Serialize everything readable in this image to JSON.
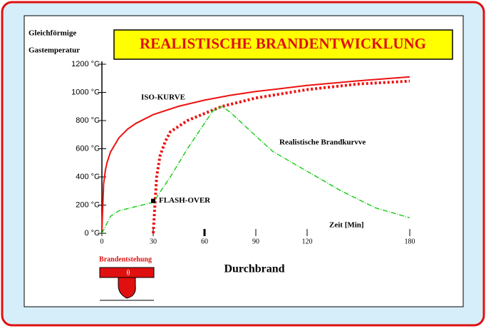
{
  "chart_data": {
    "type": "line",
    "title": "REALISTISCHE BRANDENTWICKLUNG",
    "y_label": [
      "Gleichförmige",
      "Gastemperatur"
    ],
    "x_label": "Zeit [Min]",
    "xlim": [
      0,
      180
    ],
    "ylim": [
      0,
      1200
    ],
    "xticks": [
      0,
      30,
      60,
      90,
      120,
      180
    ],
    "yticks": [
      {
        "value": 0,
        "label": "0 °C"
      },
      {
        "value": 200,
        "label": "200 °C"
      },
      {
        "value": 400,
        "label": "400 °C"
      },
      {
        "value": 600,
        "label": "600 °C"
      },
      {
        "value": 800,
        "label": "800 °C"
      },
      {
        "value": 1000,
        "label": "1000 °C"
      },
      {
        "value": 1200,
        "label": "1200 °C"
      }
    ],
    "series": [
      {
        "name": "ISO-KURVE",
        "color": "#ee1111",
        "x": [
          0,
          1,
          2,
          3,
          5,
          10,
          15,
          20,
          30,
          45,
          60,
          75,
          90,
          120,
          150,
          180
        ],
        "values": [
          20,
          349,
          445,
          502,
          576,
          678,
          739,
          781,
          842,
          902,
          945,
          979,
          1006,
          1049,
          1082,
          1110
        ]
      },
      {
        "color": "#ee1111",
        "x": [
          30,
          31,
          32,
          34,
          37,
          40,
          50,
          60,
          70,
          90,
          120,
          150,
          180
        ],
        "values": [
          0,
          200,
          400,
          550,
          650,
          720,
          800,
          850,
          900,
          960,
          1020,
          1060,
          1080
        ]
      },
      {
        "name": "Realistische Brandkurvve",
        "color": "#22cc22",
        "x": [
          0,
          5,
          10,
          20,
          30,
          40,
          50,
          60,
          65,
          70,
          75,
          90,
          100,
          120,
          140,
          160,
          180
        ],
        "values": [
          0,
          120,
          160,
          190,
          220,
          400,
          600,
          780,
          870,
          900,
          860,
          690,
          580,
          440,
          300,
          180,
          110
        ]
      }
    ],
    "flashover": {
      "label": "FLASH-OVER",
      "x": 30,
      "y": 230
    }
  },
  "footer": {
    "start": "Brandentstehung",
    "symbol": "θ",
    "burn": "Durchbrand"
  }
}
